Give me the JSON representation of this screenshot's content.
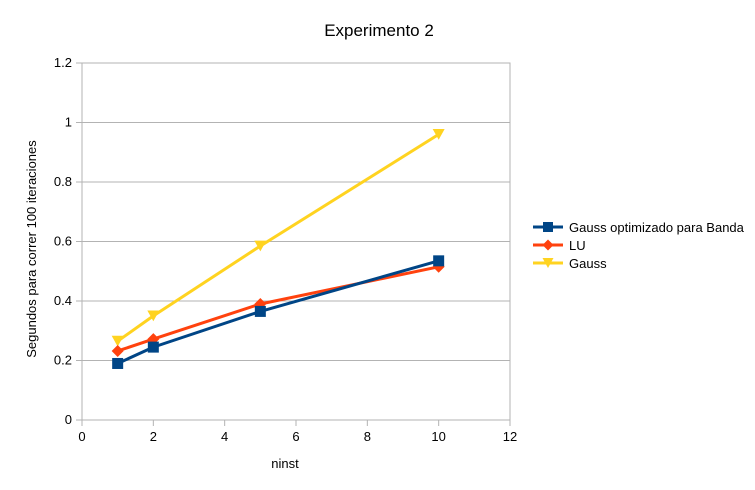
{
  "chart_data": {
    "type": "line",
    "title": "Experimento 2",
    "xlabel": "ninst",
    "ylabel": "Segundos para correr 100 iteraciones",
    "xlim": [
      0,
      12
    ],
    "ylim": [
      0,
      1.2
    ],
    "xticks": [
      0,
      2,
      4,
      6,
      8,
      10,
      12
    ],
    "yticks": [
      0,
      0.2,
      0.4,
      0.6,
      0.8,
      1,
      1.2
    ],
    "grid": "horizontal",
    "legend_position": "right",
    "series": [
      {
        "name": "Gauss optimizado para Banda",
        "color": "#004586",
        "marker": "square",
        "x": [
          1,
          2,
          5,
          10
        ],
        "y": [
          0.19,
          0.245,
          0.365,
          0.535
        ]
      },
      {
        "name": "LU",
        "color": "#ff420e",
        "marker": "diamond",
        "x": [
          1,
          2,
          5,
          10
        ],
        "y": [
          0.232,
          0.272,
          0.39,
          0.515
        ]
      },
      {
        "name": "Gauss",
        "color": "#ffd320",
        "marker": "triangle-down",
        "x": [
          1,
          2,
          5,
          10
        ],
        "y": [
          0.265,
          0.35,
          0.585,
          0.96
        ]
      }
    ]
  }
}
